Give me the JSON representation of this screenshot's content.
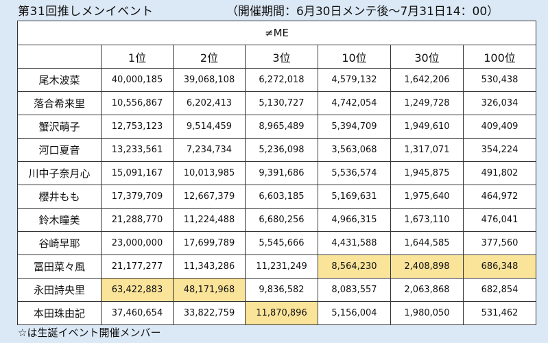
{
  "header": {
    "title": "第31回推しメンイベント",
    "period": "（開催期間：6月30日メンテ後〜7月31日14：00）"
  },
  "table": {
    "group": "≠ME",
    "columns": [
      "1位",
      "2位",
      "3位",
      "10位",
      "30位",
      "100位"
    ],
    "rows": [
      {
        "name": "尾木波菜",
        "values": [
          "40,000,185",
          "39,068,108",
          "6,272,018",
          "4,579,132",
          "1,642,206",
          "530,438"
        ]
      },
      {
        "name": "落合希来里",
        "values": [
          "10,556,867",
          "6,202,413",
          "5,130,727",
          "4,742,054",
          "1,249,728",
          "326,034"
        ]
      },
      {
        "name": "蟹沢萌子",
        "values": [
          "12,753,123",
          "9,514,459",
          "8,965,489",
          "5,394,709",
          "1,949,610",
          "409,409"
        ]
      },
      {
        "name": "河口夏音",
        "values": [
          "13,233,561",
          "7,234,734",
          "5,236,098",
          "3,563,068",
          "1,317,071",
          "354,224"
        ]
      },
      {
        "name": "川中子奈月心",
        "values": [
          "15,091,167",
          "10,013,985",
          "9,391,686",
          "5,536,574",
          "1,945,875",
          "491,802"
        ]
      },
      {
        "name": "櫻井もも",
        "values": [
          "17,379,709",
          "12,667,379",
          "6,603,185",
          "5,169,631",
          "1,975,640",
          "464,972"
        ]
      },
      {
        "name": "鈴木瞳美",
        "values": [
          "21,288,770",
          "11,224,488",
          "6,680,256",
          "4,966,315",
          "1,673,110",
          "476,041"
        ]
      },
      {
        "name": "谷崎早耶",
        "values": [
          "23,000,000",
          "17,699,789",
          "5,545,666",
          "4,431,588",
          "1,644,585",
          "377,560"
        ]
      },
      {
        "name": "冨田菜々風",
        "values": [
          "21,177,277",
          "11,343,286",
          "11,231,249",
          "8,564,230",
          "2,408,898",
          "686,348"
        ],
        "highlight": [
          3,
          4,
          5
        ]
      },
      {
        "name": "永田詩央里",
        "values": [
          "63,422,883",
          "48,171,968",
          "9,836,582",
          "8,083,557",
          "2,063,868",
          "682,854"
        ],
        "highlight": [
          0,
          1
        ]
      },
      {
        "name": "本田珠由記",
        "values": [
          "37,460,654",
          "33,822,759",
          "11,870,896",
          "5,156,004",
          "1,980,050",
          "531,462"
        ],
        "highlight": [
          2
        ]
      }
    ],
    "highlight_color": "#fae49a"
  },
  "footnote": "☆は生誕イベント開催メンバー"
}
